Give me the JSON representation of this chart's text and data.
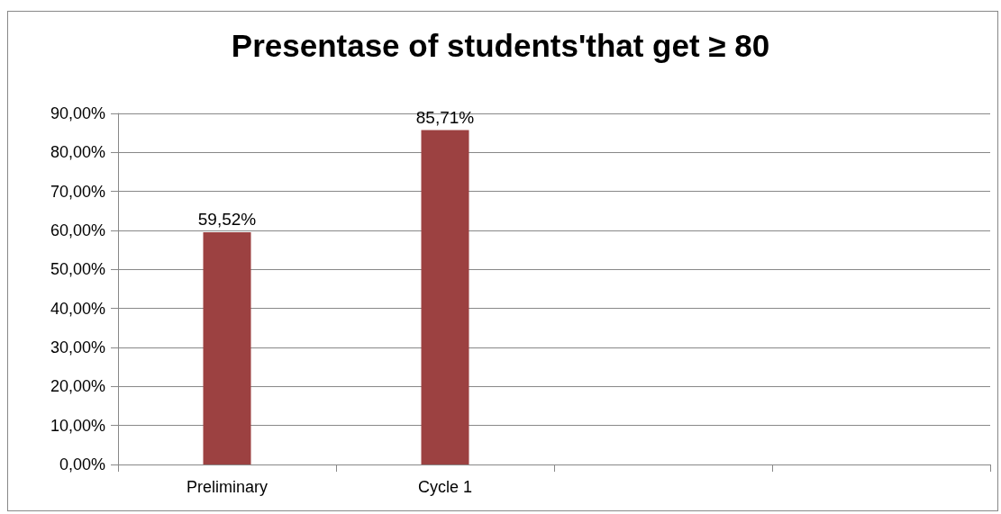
{
  "chart_data": {
    "type": "bar",
    "title": "Presentase of students'that get ≥ 80",
    "categories": [
      "Preliminary",
      "Cycle 1",
      null,
      null
    ],
    "values": [
      59.52,
      85.71,
      null,
      null
    ],
    "value_labels": [
      "59,52%",
      "85,71%",
      null,
      null
    ],
    "color": "#9c4141",
    "ylim": [
      0,
      90
    ],
    "yticks": [
      {
        "value": 0,
        "label": "0,00%"
      },
      {
        "value": 10,
        "label": "10,00%"
      },
      {
        "value": 20,
        "label": "20,00%"
      },
      {
        "value": 30,
        "label": "30,00%"
      },
      {
        "value": 40,
        "label": "40,00%"
      },
      {
        "value": 50,
        "label": "50,00%"
      },
      {
        "value": 60,
        "label": "60,00%"
      },
      {
        "value": 70,
        "label": "70,00%"
      },
      {
        "value": 80,
        "label": "80,00%"
      },
      {
        "value": 90,
        "label": "90,00%"
      }
    ],
    "grid": "y"
  }
}
